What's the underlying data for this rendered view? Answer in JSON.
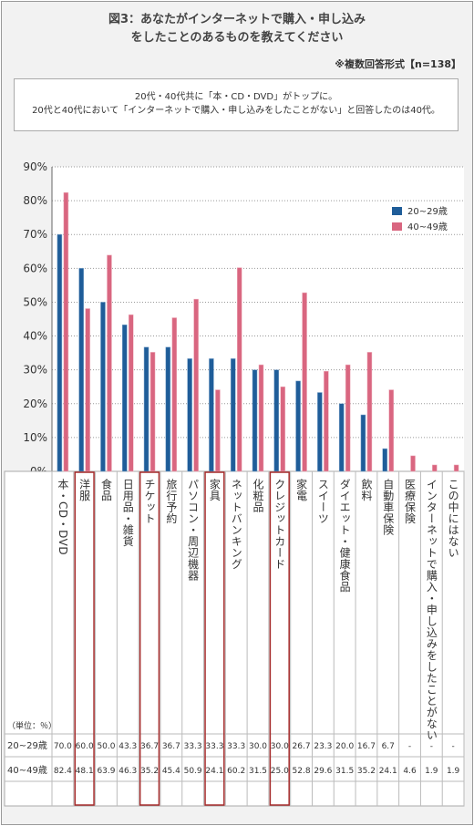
{
  "title_line1": "図3：あなたがインターネットで購入・申し込み",
  "title_line2": "をしたことのあるものを教えてください",
  "note": "※複数回答形式【n=138】",
  "summary_line1": "20代・40代共に「本・CD・DVD」がトップに。",
  "summary_line2": "20代と40代において「インターネットで購入・申し込みをしたことがない」と回答したのは40代。",
  "colors": {
    "series1": "#1f5d99",
    "series2": "#d96680",
    "highlight": "#a52a2a"
  },
  "chart_data": {
    "type": "bar",
    "categories": [
      "本・CD・DVD",
      "洋服",
      "食品",
      "日用品・雑貨",
      "チケット",
      "旅行予約",
      "パソコン・周辺機器",
      "家具",
      "ネットバンキング",
      "化粧品",
      "クレジットカード",
      "家電",
      "スイーツ",
      "ダイエット・健康食品",
      "飲料",
      "自動車保険",
      "医療保険",
      "インターネットで購入・申し込みをしたことがない",
      "この中にはない"
    ],
    "series": [
      {
        "name": "20~29歳",
        "values": [
          70.0,
          60.0,
          50.0,
          43.3,
          36.7,
          36.7,
          33.3,
          33.3,
          33.3,
          30.0,
          30.0,
          26.7,
          23.3,
          20.0,
          16.7,
          6.7,
          null,
          null,
          null
        ],
        "labels": [
          "70.0",
          "60.0",
          "50.0",
          "43.3",
          "36.7",
          "36.7",
          "33.3",
          "33.3",
          "33.3",
          "30.0",
          "30.0",
          "26.7",
          "23.3",
          "20.0",
          "16.7",
          "6.7",
          "-",
          "-",
          "-"
        ]
      },
      {
        "name": "40~49歳",
        "values": [
          82.4,
          48.1,
          63.9,
          46.3,
          35.2,
          45.4,
          50.9,
          24.1,
          60.2,
          31.5,
          25.0,
          52.8,
          29.6,
          31.5,
          35.2,
          24.1,
          4.6,
          1.9,
          1.9
        ],
        "labels": [
          "82.4",
          "48.1",
          "63.9",
          "46.3",
          "35.2",
          "45.4",
          "50.9",
          "24.1",
          "60.2",
          "31.5",
          "25.0",
          "52.8",
          "29.6",
          "31.5",
          "35.2",
          "24.1",
          "4.6",
          "1.9",
          "1.9"
        ]
      }
    ],
    "highlighted": [
      1,
      4,
      7,
      10
    ],
    "ylim": [
      0,
      90
    ],
    "yticks": [
      "0%",
      "10%",
      "20%",
      "30%",
      "40%",
      "50%",
      "60%",
      "70%",
      "80%",
      "90%"
    ],
    "unit_label": "（単位：％）",
    "legend_position": "top-right"
  }
}
